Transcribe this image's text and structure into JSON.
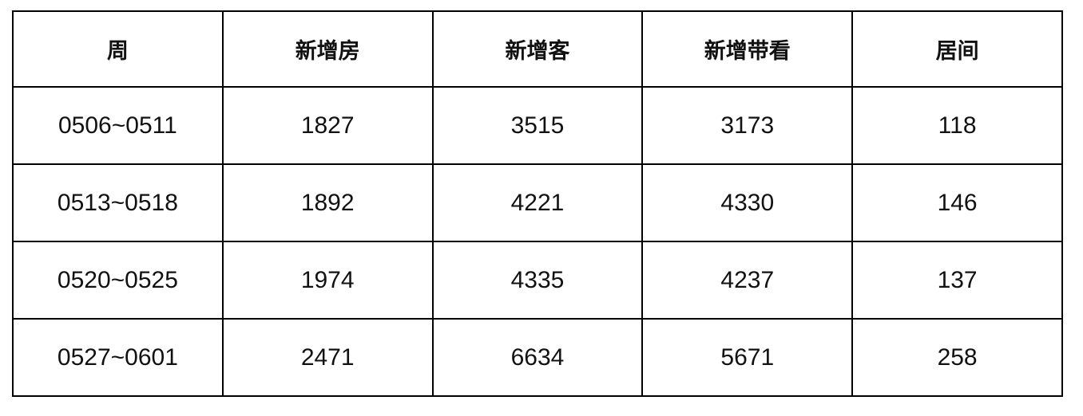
{
  "chart_data": {
    "type": "table",
    "title": "",
    "columns": [
      "周",
      "新增房",
      "新增客",
      "新增带看",
      "居间"
    ],
    "rows": [
      [
        "0506~0511",
        1827,
        3515,
        3173,
        118
      ],
      [
        "0513~0518",
        1892,
        4221,
        4330,
        146
      ],
      [
        "0520~0525",
        1974,
        4335,
        4237,
        137
      ],
      [
        "0527~0601",
        2471,
        6634,
        5671,
        258
      ]
    ],
    "grid": "all-borders",
    "border_color": "#000000",
    "background_color": "#ffffff"
  },
  "table": {
    "headers": [
      "周",
      "新增房",
      "新增客",
      "新增带看",
      "居间"
    ],
    "rows": [
      [
        "0506~0511",
        "1827",
        "3515",
        "3173",
        "118"
      ],
      [
        "0513~0518",
        "1892",
        "4221",
        "4330",
        "146"
      ],
      [
        "0520~0525",
        "1974",
        "4335",
        "4237",
        "137"
      ],
      [
        "0527~0601",
        "2471",
        "6634",
        "5671",
        "258"
      ]
    ]
  }
}
